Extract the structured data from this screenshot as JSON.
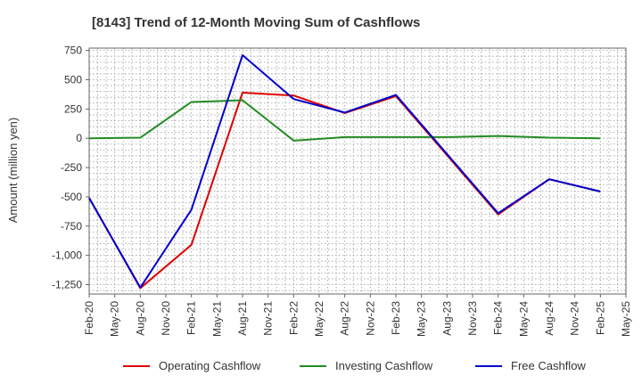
{
  "chart_data": {
    "type": "line",
    "title": "[8143]  Trend of 12-Month Moving Sum of Cashflows",
    "xlabel": "",
    "ylabel": "Amount (million yen)",
    "x_ticks": [
      "Feb-20",
      "May-20",
      "Aug-20",
      "Nov-20",
      "Feb-21",
      "May-21",
      "Aug-21",
      "Nov-21",
      "Feb-22",
      "May-22",
      "Aug-22",
      "Nov-22",
      "Feb-23",
      "May-23",
      "Aug-23",
      "Nov-23",
      "Feb-24",
      "May-24",
      "Aug-24",
      "Nov-24",
      "Feb-25",
      "May-25"
    ],
    "y_ticks": [
      750,
      500,
      250,
      0,
      -250,
      -500,
      -750,
      -1000,
      -1250
    ],
    "y_tick_labels": [
      "750",
      "500",
      "250",
      "0",
      "-250",
      "-500",
      "-750",
      "-1,000",
      "-1,250"
    ],
    "ylim": [
      -1330,
      770
    ],
    "grid": true,
    "legend_position": "bottom",
    "series": [
      {
        "name": "Operating Cashflow",
        "color": "#dd0000",
        "points": [
          [
            "Feb-20",
            -510
          ],
          [
            "Aug-20",
            -1280
          ],
          [
            "Feb-21",
            -910
          ],
          [
            "Aug-21",
            390
          ],
          [
            "Feb-22",
            365
          ],
          [
            "Aug-22",
            215
          ],
          [
            "Feb-23",
            360
          ],
          [
            "Feb-24",
            -650
          ],
          [
            "Aug-24",
            -350
          ],
          [
            "Feb-25",
            -455
          ]
        ]
      },
      {
        "name": "Investing Cashflow",
        "color": "#228b22",
        "points": [
          [
            "Feb-20",
            0
          ],
          [
            "Aug-20",
            5
          ],
          [
            "Feb-21",
            310
          ],
          [
            "Aug-21",
            325
          ],
          [
            "Feb-22",
            -20
          ],
          [
            "Aug-22",
            10
          ],
          [
            "Feb-23",
            10
          ],
          [
            "Aug-23",
            10
          ],
          [
            "Feb-24",
            20
          ],
          [
            "Aug-24",
            5
          ],
          [
            "Feb-25",
            0
          ]
        ]
      },
      {
        "name": "Free Cashflow",
        "color": "#0000cc",
        "points": [
          [
            "Feb-20",
            -510
          ],
          [
            "Aug-20",
            -1275
          ],
          [
            "Feb-21",
            -610
          ],
          [
            "Aug-21",
            710
          ],
          [
            "Feb-22",
            335
          ],
          [
            "Aug-22",
            220
          ],
          [
            "Feb-23",
            370
          ],
          [
            "Feb-24",
            -640
          ],
          [
            "Aug-24",
            -350
          ],
          [
            "Feb-25",
            -455
          ]
        ]
      }
    ]
  }
}
